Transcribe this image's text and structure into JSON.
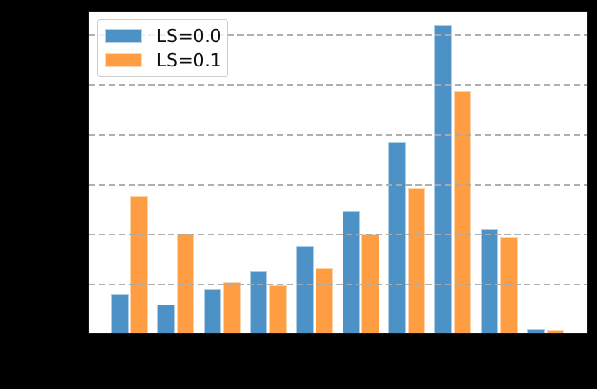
{
  "window": {
    "background_color": "#000000",
    "note": "axis tick labels and axis titles are not visible (rendered black on black background)"
  },
  "chart_data": {
    "type": "bar",
    "title": "",
    "xlabel": "",
    "ylabel": "",
    "n_groups": 10,
    "categories": [
      "",
      "",
      "",
      "",
      "",
      "",
      "",
      "",
      "",
      ""
    ],
    "series": [
      {
        "name": "LS=0.0",
        "color": "#4D92C6",
        "values": [
          0.79,
          0.57,
          0.89,
          1.25,
          1.75,
          2.45,
          3.85,
          6.19,
          2.09,
          0.09
        ]
      },
      {
        "name": "LS=0.1",
        "color": "#FF9D43",
        "values": [
          2.77,
          2.0,
          1.02,
          0.97,
          1.32,
          1.98,
          2.92,
          4.87,
          1.93,
          0.07
        ]
      }
    ],
    "y_axis": {
      "units": "gridline units (tick labels not visible)",
      "ylim": [
        0,
        6.46
      ],
      "gridline_values": [
        1,
        2,
        3,
        4,
        5,
        6
      ],
      "tick_labels_visible": false
    },
    "x_axis": {
      "tick_labels_visible": false
    },
    "grid": {
      "visible": true,
      "style": "dashed",
      "color": "#ABABAB",
      "drawn_above_bars": true
    },
    "legend": {
      "position": "upper-left",
      "frame_alpha": 0.8,
      "entries": [
        "LS=0.0",
        "LS=0.1"
      ]
    },
    "plot_background": "#FFFFFF"
  }
}
